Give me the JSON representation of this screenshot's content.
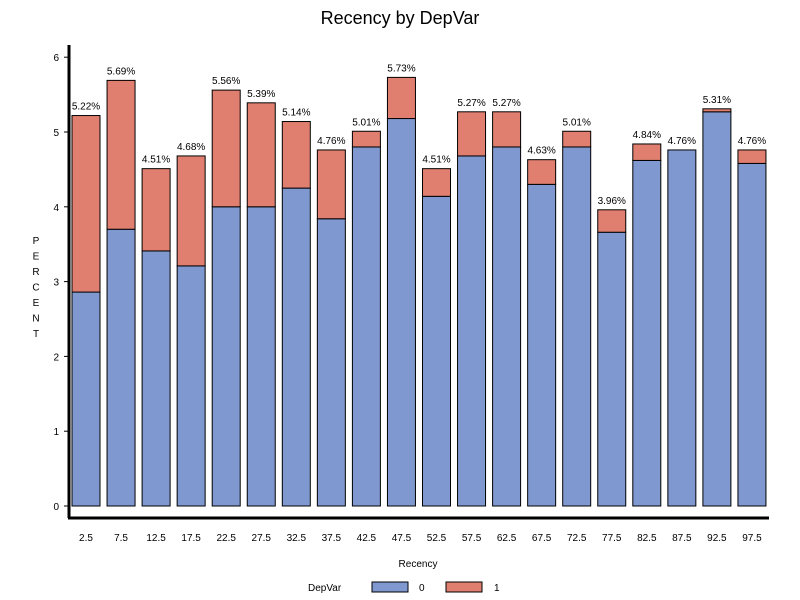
{
  "chart_data": {
    "type": "bar",
    "stacked": true,
    "title": "Recency by DepVar",
    "xlabel": "Recency",
    "ylabel": "PERCENT",
    "ylim": [
      0,
      6.2
    ],
    "yticks": [
      0,
      1,
      2,
      3,
      4,
      5,
      6
    ],
    "categories": [
      "2.5",
      "7.5",
      "12.5",
      "17.5",
      "22.5",
      "27.5",
      "32.5",
      "37.5",
      "42.5",
      "47.5",
      "52.5",
      "57.5",
      "62.5",
      "67.5",
      "72.5",
      "77.5",
      "82.5",
      "87.5",
      "92.5",
      "97.5"
    ],
    "series": [
      {
        "name": "0",
        "color": "#7f98cf",
        "values": [
          2.86,
          3.7,
          3.41,
          3.21,
          4.0,
          4.0,
          4.25,
          3.84,
          4.8,
          5.18,
          4.14,
          4.68,
          4.8,
          4.3,
          4.8,
          3.66,
          4.62,
          4.76,
          5.27,
          4.58
        ]
      },
      {
        "name": "1",
        "color": "#e07f6f",
        "values": [
          2.36,
          1.99,
          1.1,
          1.47,
          1.56,
          1.39,
          0.89,
          0.92,
          0.21,
          0.55,
          0.37,
          0.59,
          0.47,
          0.33,
          0.21,
          0.3,
          0.22,
          0.0,
          0.04,
          0.18
        ]
      }
    ],
    "data_labels": [
      "5.22%",
      "5.69%",
      "4.51%",
      "4.68%",
      "5.56%",
      "5.39%",
      "5.14%",
      "4.76%",
      "5.01%",
      "5.73%",
      "4.51%",
      "5.27%",
      "5.27%",
      "4.63%",
      "5.01%",
      "3.96%",
      "4.84%",
      "4.76%",
      "5.31%",
      "4.76%"
    ],
    "legend": {
      "title": "DepVar",
      "position": "bottom",
      "entries": [
        "0",
        "1"
      ]
    },
    "grid": false
  }
}
